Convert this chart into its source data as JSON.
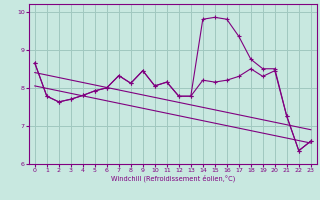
{
  "xlabel": "Windchill (Refroidissement éolien,°C)",
  "background_color": "#c8e8e0",
  "line_color": "#800080",
  "grid_color": "#a0c8c0",
  "xlim": [
    -0.5,
    23.5
  ],
  "ylim": [
    6,
    10.2
  ],
  "yticks": [
    6,
    7,
    8,
    9,
    10
  ],
  "xticks": [
    0,
    1,
    2,
    3,
    4,
    5,
    6,
    7,
    8,
    9,
    10,
    11,
    12,
    13,
    14,
    15,
    16,
    17,
    18,
    19,
    20,
    21,
    22,
    23
  ],
  "series1_x": [
    0,
    1,
    2,
    3,
    4,
    5,
    6,
    7,
    8,
    9,
    10,
    11,
    12,
    13,
    14,
    15,
    16,
    17,
    18,
    19,
    20,
    21,
    22,
    23
  ],
  "series1_y": [
    8.65,
    7.78,
    7.63,
    7.7,
    7.8,
    7.92,
    8.0,
    8.32,
    8.12,
    8.45,
    8.05,
    8.15,
    7.78,
    7.78,
    8.2,
    8.15,
    8.2,
    8.3,
    8.5,
    8.3,
    8.45,
    7.25,
    6.35,
    6.6
  ],
  "series2_x": [
    0,
    1,
    2,
    3,
    4,
    5,
    6,
    7,
    8,
    9,
    10,
    11,
    12,
    13,
    14,
    15,
    16,
    17,
    18,
    19,
    20,
    21,
    22,
    23
  ],
  "series2_y": [
    8.65,
    7.78,
    7.63,
    7.7,
    7.8,
    7.92,
    8.0,
    8.32,
    8.12,
    8.45,
    8.05,
    8.15,
    7.78,
    7.78,
    9.8,
    9.85,
    9.8,
    9.35,
    8.75,
    8.5,
    8.5,
    7.25,
    6.35,
    6.6
  ],
  "series3_x": [
    0,
    23
  ],
  "series3_y": [
    8.4,
    6.9
  ],
  "series4_x": [
    0,
    23
  ],
  "series4_y": [
    8.05,
    6.55
  ]
}
